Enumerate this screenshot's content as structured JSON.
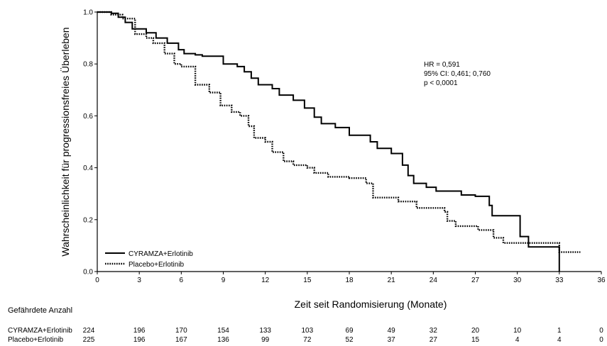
{
  "chart_data": {
    "type": "line",
    "xlabel": "Zeit seit Randomisierung (Monate)",
    "ylabel": "Wahrscheinlichkeit für progressionsfreies Überleben",
    "xlim": [
      0,
      36
    ],
    "ylim": [
      0,
      1
    ],
    "x_ticks": [
      0,
      3,
      6,
      9,
      12,
      15,
      18,
      21,
      24,
      27,
      30,
      33,
      36
    ],
    "y_ticks": [
      0,
      0.2,
      0.4,
      0.6,
      0.8,
      1.0
    ],
    "y_tick_labels": [
      "0.0",
      "0.2",
      "0.4",
      "0.6",
      "0.8",
      "1.0"
    ],
    "grid": false,
    "legend_position": "bottom-left",
    "series": [
      {
        "name": "CYRAMZA+Erlotinib",
        "line_style": "solid",
        "step": true,
        "points": [
          [
            0,
            1.0
          ],
          [
            1,
            0.995
          ],
          [
            1.5,
            0.98
          ],
          [
            2,
            0.96
          ],
          [
            2.5,
            0.935
          ],
          [
            3.5,
            0.92
          ],
          [
            4.2,
            0.9
          ],
          [
            5,
            0.88
          ],
          [
            5.8,
            0.855
          ],
          [
            6.2,
            0.84
          ],
          [
            7,
            0.835
          ],
          [
            7.5,
            0.83
          ],
          [
            9,
            0.8
          ],
          [
            10,
            0.79
          ],
          [
            10.5,
            0.77
          ],
          [
            11,
            0.745
          ],
          [
            11.5,
            0.72
          ],
          [
            12.5,
            0.705
          ],
          [
            13,
            0.68
          ],
          [
            14,
            0.66
          ],
          [
            14.8,
            0.63
          ],
          [
            15.5,
            0.595
          ],
          [
            16,
            0.57
          ],
          [
            17,
            0.555
          ],
          [
            18,
            0.525
          ],
          [
            19.5,
            0.5
          ],
          [
            20,
            0.475
          ],
          [
            21,
            0.455
          ],
          [
            21.8,
            0.41
          ],
          [
            22.2,
            0.37
          ],
          [
            22.6,
            0.34
          ],
          [
            23.5,
            0.325
          ],
          [
            24.2,
            0.31
          ],
          [
            26,
            0.295
          ],
          [
            27,
            0.29
          ],
          [
            28,
            0.255
          ],
          [
            28.2,
            0.215
          ],
          [
            30.2,
            0.135
          ],
          [
            30.8,
            0.095
          ],
          [
            33,
            0.0
          ]
        ]
      },
      {
        "name": "Placebo+Erlotinib",
        "line_style": "dotted",
        "step": true,
        "points": [
          [
            0,
            1.0
          ],
          [
            1,
            0.99
          ],
          [
            1.8,
            0.975
          ],
          [
            2.7,
            0.915
          ],
          [
            3.5,
            0.9
          ],
          [
            4,
            0.88
          ],
          [
            4.8,
            0.84
          ],
          [
            5.5,
            0.8
          ],
          [
            6,
            0.79
          ],
          [
            7,
            0.72
          ],
          [
            8,
            0.69
          ],
          [
            8.8,
            0.64
          ],
          [
            9.6,
            0.615
          ],
          [
            10.2,
            0.6
          ],
          [
            10.8,
            0.56
          ],
          [
            11.2,
            0.515
          ],
          [
            12,
            0.5
          ],
          [
            12.5,
            0.46
          ],
          [
            13.3,
            0.425
          ],
          [
            14,
            0.41
          ],
          [
            15,
            0.4
          ],
          [
            15.5,
            0.38
          ],
          [
            16.5,
            0.365
          ],
          [
            18,
            0.36
          ],
          [
            19.2,
            0.34
          ],
          [
            19.7,
            0.285
          ],
          [
            21.5,
            0.27
          ],
          [
            22.8,
            0.245
          ],
          [
            24.8,
            0.23
          ],
          [
            25,
            0.195
          ],
          [
            25.6,
            0.175
          ],
          [
            27.2,
            0.16
          ],
          [
            28.3,
            0.13
          ],
          [
            29,
            0.11
          ],
          [
            32.6,
            0.11
          ],
          [
            33,
            0.075
          ],
          [
            34.5,
            0.075
          ]
        ]
      }
    ],
    "annotations": {
      "hr": "HR = 0,591",
      "ci": "95% CI:  0,461; 0,760",
      "p": "p < 0,0001"
    },
    "risk_table": {
      "title": "Gefährdete Anzahl",
      "rows": [
        {
          "label": "CYRAMZA+Erlotinib",
          "values": [
            224,
            196,
            170,
            154,
            133,
            103,
            69,
            49,
            32,
            20,
            10,
            1,
            0
          ]
        },
        {
          "label": "Placebo+Erlotinib",
          "values": [
            225,
            196,
            167,
            136,
            99,
            72,
            52,
            37,
            27,
            15,
            4,
            4,
            0
          ]
        }
      ]
    }
  },
  "colors": {
    "axis": "#000000",
    "line": "#000000",
    "background": "#ffffff"
  }
}
